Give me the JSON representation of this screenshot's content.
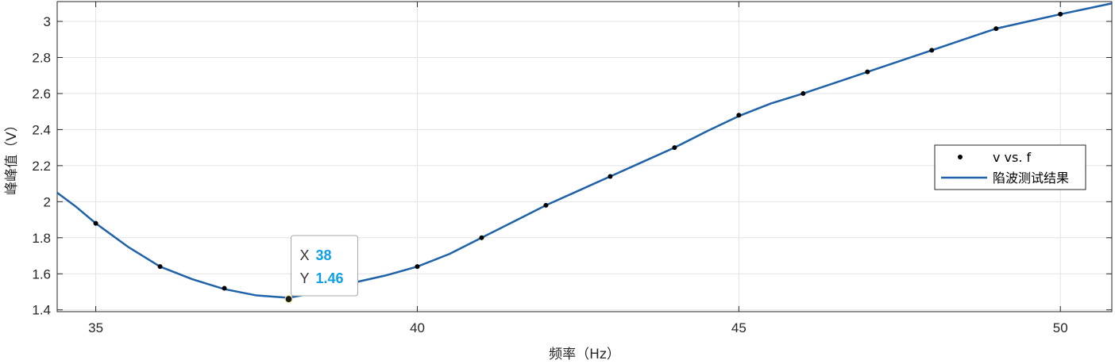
{
  "chart_data": {
    "type": "line",
    "xlabel": "频率（Hz）",
    "ylabel": "峰峰值（V）",
    "xlim": [
      34.4,
      50.8
    ],
    "ylim": [
      1.39,
      3.11
    ],
    "xticks": [
      35,
      40,
      45,
      50
    ],
    "yticks": [
      1.4,
      1.6,
      1.8,
      2,
      2.2,
      2.4,
      2.6,
      2.8,
      3
    ],
    "xtick_labels": [
      "35",
      "40",
      "45",
      "50"
    ],
    "ytick_labels": [
      "1.4",
      "1.6",
      "1.8",
      "2",
      "2.2",
      "2.4",
      "2.6",
      "2.8",
      "3"
    ],
    "grid": true,
    "legend_position": "right",
    "series": [
      {
        "name": "v vs. f",
        "style": "points",
        "color": "#000000",
        "x": [
          35,
          36,
          37,
          38,
          39,
          40,
          41,
          42,
          43,
          44,
          45,
          46,
          47,
          48,
          49,
          50
        ],
        "y": [
          1.88,
          1.64,
          1.52,
          1.46,
          1.56,
          1.64,
          1.8,
          1.98,
          2.14,
          2.3,
          2.48,
          2.6,
          2.72,
          2.84,
          2.96,
          3.04
        ]
      },
      {
        "name": "陷波测试结果",
        "style": "line",
        "color": "#1f62a8",
        "x": [
          34.4,
          34.7,
          35,
          35.5,
          36,
          36.5,
          37,
          37.5,
          38,
          38.5,
          39,
          39.5,
          40,
          40.5,
          41,
          41.5,
          42,
          42.5,
          43,
          43.5,
          44,
          44.5,
          45,
          45.5,
          46,
          46.5,
          47,
          47.5,
          48,
          48.5,
          49,
          49.5,
          50,
          50.4,
          50.8
        ],
        "y": [
          2.05,
          1.97,
          1.88,
          1.75,
          1.64,
          1.57,
          1.515,
          1.48,
          1.467,
          1.5,
          1.55,
          1.59,
          1.64,
          1.71,
          1.8,
          1.89,
          1.98,
          2.06,
          2.14,
          2.22,
          2.3,
          2.39,
          2.475,
          2.545,
          2.6,
          2.66,
          2.72,
          2.78,
          2.84,
          2.9,
          2.96,
          3.0,
          3.04,
          3.07,
          3.1
        ]
      }
    ],
    "datatip": {
      "x": 38,
      "y": 1.46,
      "x_label": "X",
      "y_label": "Y",
      "x_value": "38",
      "y_value": "1.46",
      "value_color": "#0e9fe8"
    }
  }
}
